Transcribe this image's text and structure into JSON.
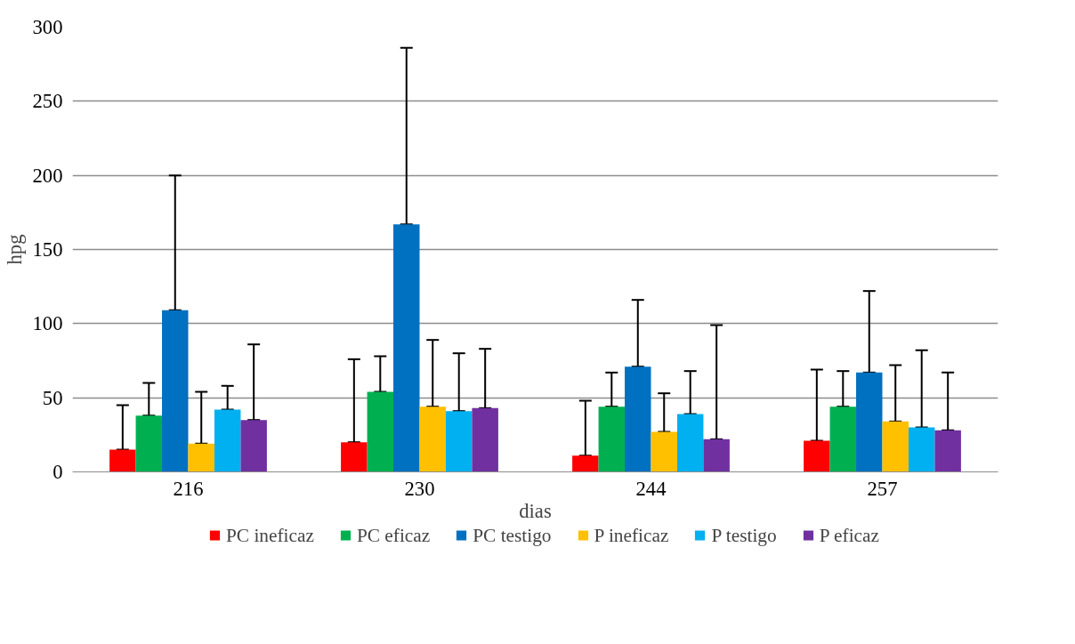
{
  "chart_data": {
    "type": "bar",
    "xlabel": "dias",
    "ylabel": "hpg",
    "categories": [
      "216",
      "230",
      "244",
      "257"
    ],
    "ylim": [
      0,
      300
    ],
    "yticks": [
      0,
      50,
      100,
      150,
      200,
      250,
      300
    ],
    "grid": "y",
    "legend": "bottom",
    "series": [
      {
        "name": "PC ineficaz",
        "color": "#ff0000",
        "values": [
          15,
          20,
          11,
          21
        ],
        "errors": [
          [
            15,
            45
          ],
          [
            20,
            76
          ],
          [
            11,
            48
          ],
          [
            21,
            69
          ]
        ]
      },
      {
        "name": "PC eficaz",
        "color": "#00b050",
        "values": [
          38,
          54,
          44,
          44
        ],
        "errors": [
          [
            38,
            60
          ],
          [
            54,
            78
          ],
          [
            44,
            67
          ],
          [
            44,
            68
          ]
        ]
      },
      {
        "name": "PC testigo",
        "color": "#0070c0",
        "values": [
          109,
          167,
          71,
          67
        ],
        "errors": [
          [
            109,
            200
          ],
          [
            167,
            286
          ],
          [
            71,
            116
          ],
          [
            67,
            122
          ]
        ]
      },
      {
        "name": "P ineficaz",
        "color": "#ffc000",
        "values": [
          19,
          44,
          27,
          34
        ],
        "errors": [
          [
            19,
            54
          ],
          [
            44,
            89
          ],
          [
            27,
            53
          ],
          [
            34,
            72
          ]
        ]
      },
      {
        "name": "P testigo",
        "color": "#00b0f0",
        "values": [
          42,
          41,
          39,
          30
        ],
        "errors": [
          [
            42,
            58
          ],
          [
            41,
            80
          ],
          [
            39,
            68
          ],
          [
            30,
            82
          ]
        ]
      },
      {
        "name": "P eficaz",
        "color": "#7030a0",
        "values": [
          35,
          43,
          22,
          28
        ],
        "errors": [
          [
            35,
            86
          ],
          [
            43,
            83
          ],
          [
            22,
            99
          ],
          [
            28,
            67
          ]
        ]
      }
    ]
  }
}
